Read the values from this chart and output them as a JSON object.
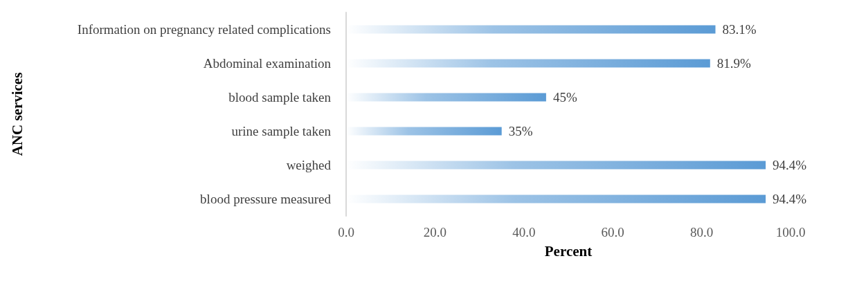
{
  "chart_data": {
    "type": "bar",
    "orientation": "horizontal",
    "xlabel": "Percent",
    "ylabel": "ANC services",
    "categories": [
      "Information on pregnancy related complications",
      "Abdominal examination",
      "blood sample taken",
      "urine sample taken",
      "weighed",
      "blood pressure measured"
    ],
    "values": [
      83.1,
      81.9,
      45,
      35,
      94.4,
      94.4
    ],
    "value_labels": [
      "83.1%",
      "81.9%",
      "45%",
      "35%",
      "94.4%",
      "94.4%"
    ],
    "color": "#5b9bd5",
    "xlim": [
      0,
      100
    ],
    "xticks": [
      {
        "value": 0,
        "label": "0.0"
      },
      {
        "value": 20,
        "label": "20.0"
      },
      {
        "value": 40,
        "label": "40.0"
      },
      {
        "value": 60,
        "label": "60.0"
      },
      {
        "value": 80,
        "label": "80.0"
      },
      {
        "value": 100,
        "label": "100.0"
      }
    ],
    "grid": false
  }
}
